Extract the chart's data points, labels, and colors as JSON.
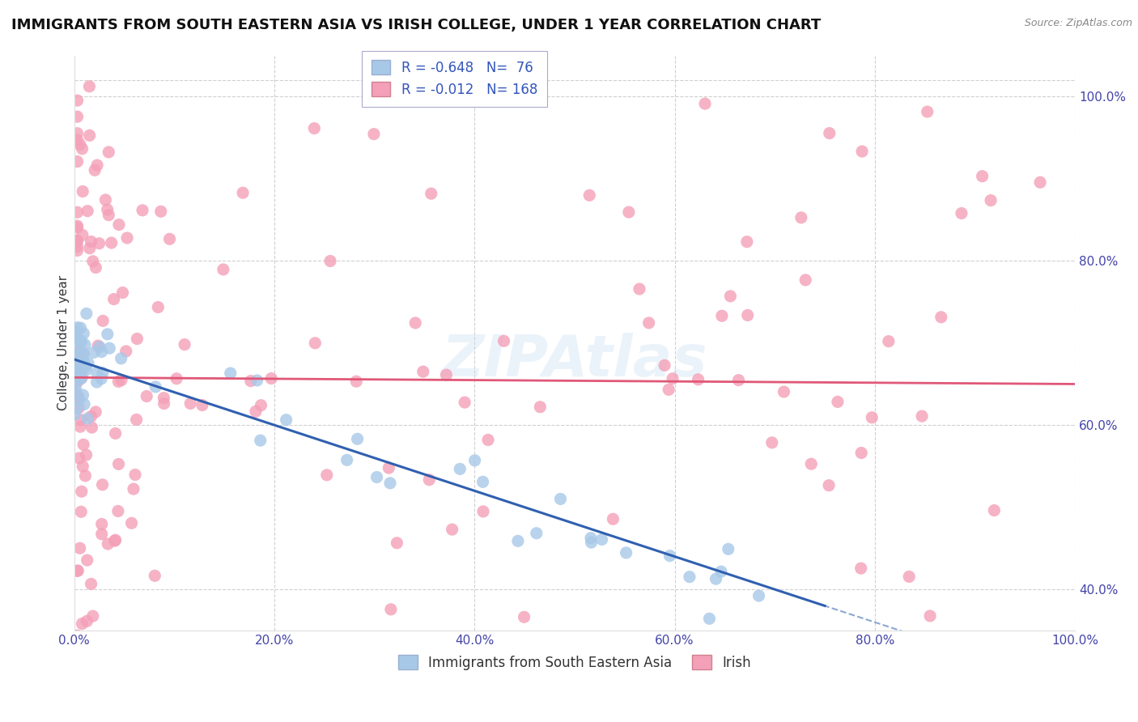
{
  "title": "IMMIGRANTS FROM SOUTH EASTERN ASIA VS IRISH COLLEGE, UNDER 1 YEAR CORRELATION CHART",
  "source": "Source: ZipAtlas.com",
  "ylabel": "College, Under 1 year",
  "legend_bottom": [
    "Immigrants from South Eastern Asia",
    "Irish"
  ],
  "blue_R": -0.648,
  "blue_N": 76,
  "pink_R": -0.012,
  "pink_N": 168,
  "blue_color": "#a8c8e8",
  "pink_color": "#f4a0b8",
  "blue_line_color": "#3060b0",
  "pink_line_color": "#e05878",
  "dot_size": 120,
  "background_color": "#ffffff",
  "grid_color": "#d0d0d0",
  "title_fontsize": 13,
  "axis_label_fontsize": 11,
  "tick_fontsize": 11,
  "legend_fontsize": 12,
  "watermark": "ZIPAtlas"
}
